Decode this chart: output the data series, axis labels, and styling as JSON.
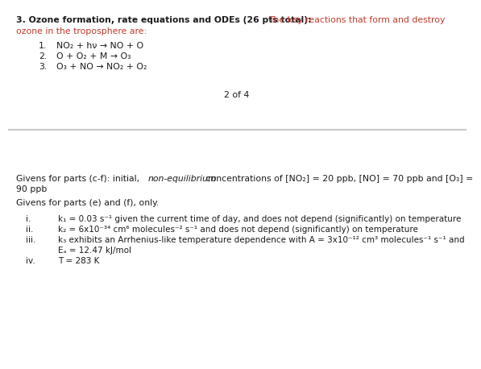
{
  "bg_color": "#ffffff",
  "divider_color": "#c8c8c8",
  "title_bold": "3. Ozone formation, rate equations and ODEs (26 pts total): ",
  "title_red1": "The key reactions that form and destroy",
  "title_red2": "ozone in the troposphere are:",
  "reactions": [
    [
      "1.",
      "NO₂ + hν → NO + O"
    ],
    [
      "2.",
      "O + O₂ + M → O₃"
    ],
    [
      "3.",
      "O₃ + NO → NO₂ + O₂"
    ]
  ],
  "page_label": "2 of 4",
  "givens_cf_normal_pre": "Givens for parts (c-f): initial, ",
  "givens_cf_italic": "non-equilibrium",
  "givens_cf_normal_post": " concentrations of [NO₂] = 20 ppb, [NO] = 70 ppb and [O₃] =",
  "givens_cf_line2": "90 ppb",
  "givens_ef": "Givens for parts (e) and (f), only.",
  "items": [
    [
      "i.",
      "k₁ = 0.03 s⁻¹ given the current time of day, and does not depend (significantly) on temperature"
    ],
    [
      "ii.",
      "k₂ = 6x10⁻³⁴ cm⁶ molecules⁻² s⁻¹ and does not depend (significantly) on temperature"
    ],
    [
      "iii.",
      "k₃ exhibits an Arrhenius-like temperature dependence with A = 3x10⁻¹² cm³ molecules⁻¹ s⁻¹ and"
    ],
    [
      "",
      "Eₐ = 12.47 kJ/mol"
    ],
    [
      "iv.",
      "T = 283 K"
    ]
  ],
  "color_red": "#c0392b",
  "color_black": "#1a1a1a",
  "fs": 7.8,
  "fs_small": 7.5
}
